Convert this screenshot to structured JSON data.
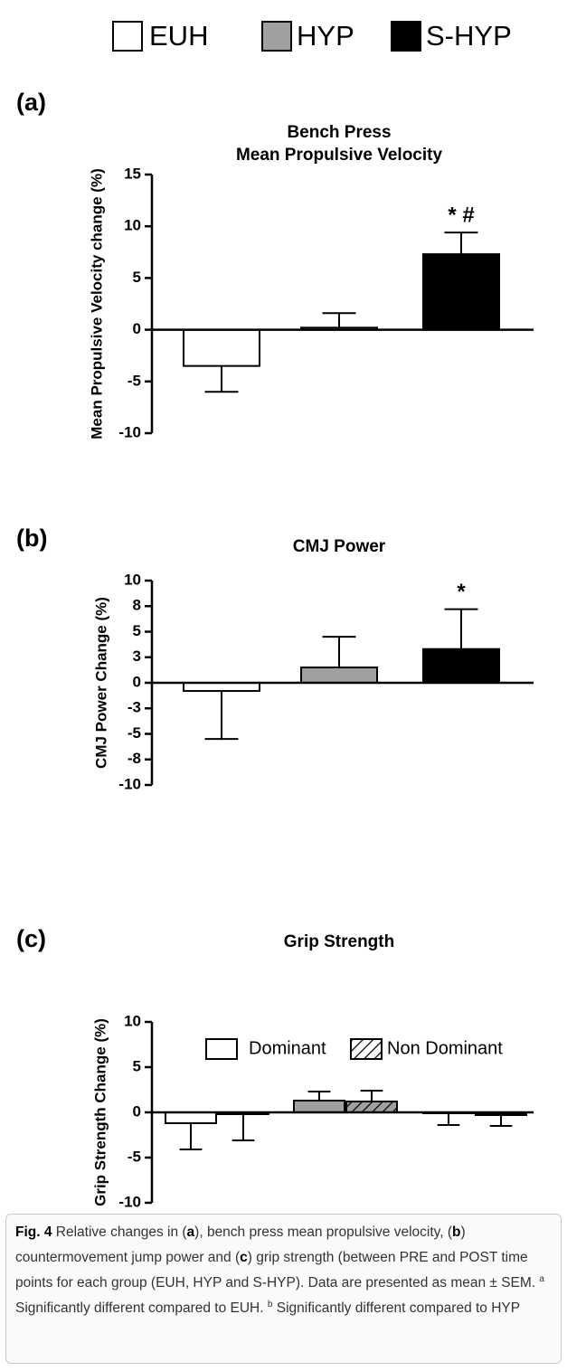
{
  "legend": [
    {
      "name": "EUH",
      "color": "#ffffff"
    },
    {
      "name": "HYP",
      "color": "#a0a0a0"
    },
    {
      "name": "S-HYP",
      "color": "#000000"
    }
  ],
  "chart_data": [
    {
      "type": "bar",
      "label": "(a)",
      "title": [
        "Bench  Press",
        "Mean Propulsive Velocity"
      ],
      "ylabel": "Mean Propulsive Velocity change (%)",
      "values": [
        -3.5,
        0.2,
        7.3
      ],
      "errors": [
        2.5,
        1.4,
        2.1
      ],
      "annotations": [
        null,
        null,
        "* #"
      ],
      "ylim": [
        -10,
        15
      ],
      "yticks": [
        -10,
        -5,
        0,
        5,
        10,
        15
      ]
    },
    {
      "type": "bar",
      "label": "(b)",
      "title": [
        "CMJ Power"
      ],
      "ylabel": "CMJ Power Change (%)",
      "values": [
        -0.8,
        1.5,
        3.3
      ],
      "errors": [
        4.7,
        3.0,
        3.9
      ],
      "annotations": [
        null,
        null,
        "*"
      ],
      "ylim": [
        -10,
        10
      ],
      "yticks": [
        {
          "value": -10,
          "label": "-10"
        },
        {
          "value": -7.5,
          "label": "-8"
        },
        {
          "value": -5,
          "label": "-5"
        },
        {
          "value": -2.5,
          "label": "-3"
        },
        0,
        {
          "value": 2.5,
          "label": "3"
        },
        5,
        {
          "value": 7.5,
          "label": "8"
        },
        10
      ]
    },
    {
      "type": "grouped_bar",
      "label": "(c)",
      "title": [
        "Grip  Strength"
      ],
      "ylabel": "Grip Strength Change (%)",
      "series": [
        {
          "name": "Dominant",
          "pattern": "solid",
          "values": [
            -1.2,
            1.3,
            -0.1
          ],
          "errors": [
            2.9,
            1.0,
            1.3
          ]
        },
        {
          "name": "Non Dominant",
          "pattern": "hatch",
          "values": [
            -0.2,
            1.2,
            -0.3
          ],
          "errors": [
            2.9,
            1.2,
            1.2
          ]
        }
      ],
      "ylim": [
        -10,
        10
      ],
      "yticks": [
        -10,
        -5,
        0,
        5,
        10
      ]
    }
  ],
  "caption": [
    {
      "text": "Fig. 4",
      "bold": true
    },
    {
      "text": " Relative changes in ("
    },
    {
      "text": "a",
      "bold": true
    },
    {
      "text": "), bench press mean propulsive velocity, ("
    },
    {
      "text": "b",
      "bold": true
    },
    {
      "text": ") countermovement jump power and ("
    },
    {
      "text": "c",
      "bold": true
    },
    {
      "text": ") grip strength (between PRE and POST time points for each group (EUH, HYP and S-HYP). Data are presented as mean ± SEM. "
    },
    {
      "text": "a",
      "sup": true
    },
    {
      "text": " Significantly different compared to EUH. "
    },
    {
      "text": "b",
      "sup": true
    },
    {
      "text": " Significantly different compared to HYP"
    }
  ]
}
